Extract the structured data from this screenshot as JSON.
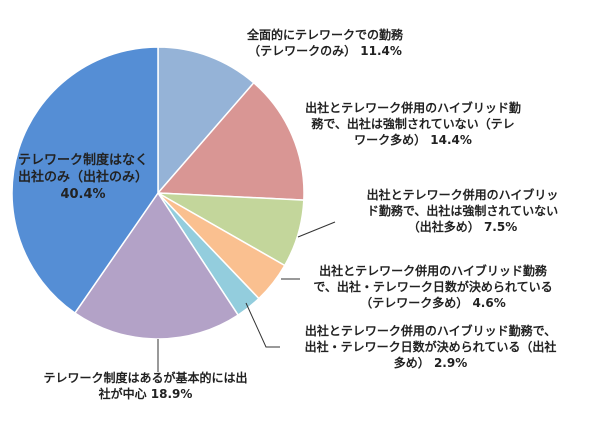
{
  "chart_data": {
    "type": "pie",
    "title": "",
    "start_angle_deg": 0,
    "direction": "clockwise",
    "slices": [
      {
        "label": "全面的にテレワークでの勤務\n（テレワークのみ） 11.4%",
        "value": 11.4,
        "color": "#95b3d7"
      },
      {
        "label": "出社とテレワーク併用のハイブリッド勤\n務で、出社は強制されていない（テレ\nワーク多め） 14.4%",
        "value": 14.4,
        "color": "#d99694"
      },
      {
        "label": "出社とテレワーク併用のハイブリッ\nド勤務で、出社は強制されていない\n（出社多め） 7.5%",
        "value": 7.5,
        "color": "#c3d69b"
      },
      {
        "label": "出社とテレワーク併用のハイブリッド勤務\nで、出社・テレワーク日数が決められている\n（テレワーク多め） 4.6%",
        "value": 4.6,
        "color": "#fac090"
      },
      {
        "label": "出社とテレワーク併用のハイブリッド勤務で、\n出社・テレワーク日数が決められている（出社\n多め） 2.9%",
        "value": 2.9,
        "color": "#93cddd"
      },
      {
        "label": "テレワーク制度はあるが基本的には出\n社が中心 18.9%",
        "value": 18.9,
        "color": "#b3a2c7"
      },
      {
        "label": "テレワーク制度はなく\n出社のみ（出社のみ）\n40.4%",
        "value": 40.4,
        "color": "#558ed5"
      }
    ]
  }
}
